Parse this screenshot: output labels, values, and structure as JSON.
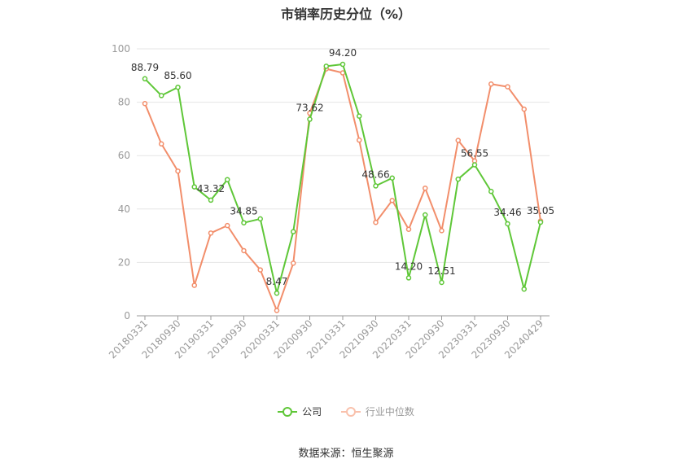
{
  "chart_data": {
    "type": "line",
    "title": "市销率历史分位（%）",
    "ylim": [
      0,
      100
    ],
    "yticks": [
      0,
      20,
      40,
      60,
      80,
      100
    ],
    "grid": true,
    "legend_position": "bottom",
    "x": [
      "20180331",
      "20180630",
      "20180930",
      "20181231",
      "20190331",
      "20190630",
      "20190930",
      "20191231",
      "20200331",
      "20200630",
      "20200930",
      "20201231",
      "20210331",
      "20210630",
      "20210930",
      "20211231",
      "20220331",
      "20220630",
      "20220930",
      "20221231",
      "20230331",
      "20230630",
      "20230930",
      "20231231",
      "20240429"
    ],
    "xtick_labels": [
      "20180331",
      "20180930",
      "20190331",
      "20190930",
      "20200331",
      "20200930",
      "20210331",
      "20210930",
      "20220331",
      "20220930",
      "20230331",
      "20230930",
      "20240429"
    ],
    "series": [
      {
        "name": "公司",
        "color": "#5fc738",
        "values": [
          88.79,
          82.5,
          85.6,
          48.3,
          43.32,
          51.0,
          34.85,
          36.3,
          8.47,
          31.5,
          73.62,
          93.5,
          94.2,
          74.8,
          48.66,
          51.6,
          14.2,
          37.8,
          12.51,
          51.2,
          56.55,
          46.6,
          34.46,
          10.0,
          35.05
        ],
        "labels": {
          "0": "88.79",
          "2": "85.60",
          "4": "43.32",
          "6": "34.85",
          "8": "8.47",
          "10": "73.62",
          "12": "94.20",
          "14": "48.66",
          "16": "14.20",
          "18": "12.51",
          "20": "56.55",
          "22": "34.46",
          "24": "35.05"
        }
      },
      {
        "name": "行业中位数",
        "color": "#f28e6b",
        "values": [
          79.5,
          64.4,
          54.2,
          11.4,
          31.0,
          33.8,
          24.4,
          17.2,
          2.0,
          19.7,
          75.9,
          92.5,
          91.0,
          65.8,
          35.0,
          43.2,
          32.4,
          47.8,
          31.9,
          65.7,
          58.0,
          86.8,
          85.8,
          77.4,
          35.5
        ]
      }
    ]
  },
  "source": "数据来源：恒生聚源"
}
